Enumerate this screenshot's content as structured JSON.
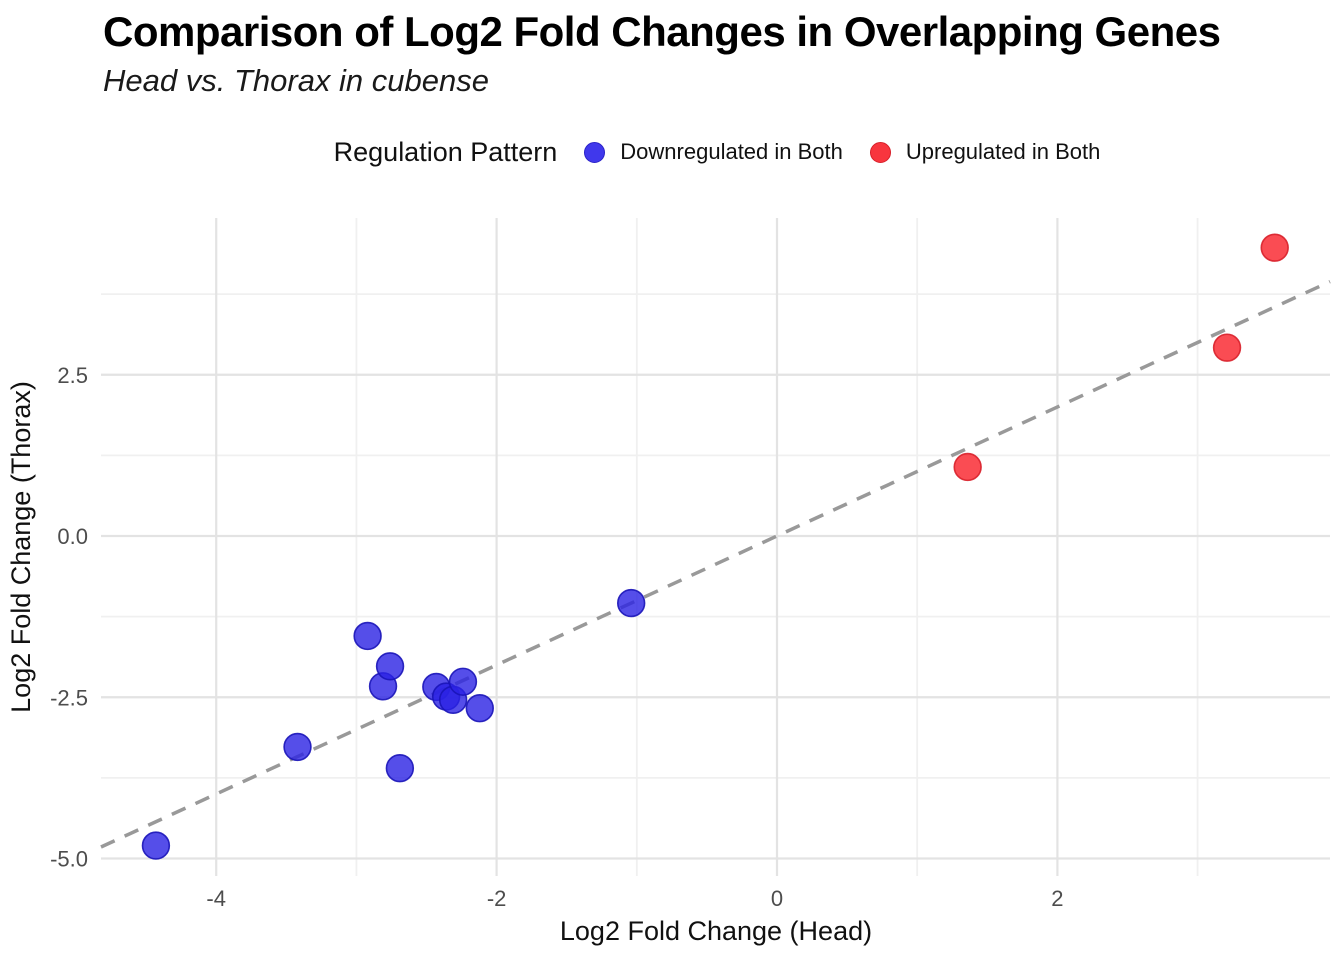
{
  "header": {
    "title": "Comparison of Log2 Fold Changes in Overlapping Genes",
    "subtitle": "Head vs. Thorax in cubense"
  },
  "legend": {
    "title": "Regulation Pattern",
    "items": [
      {
        "label": "Downregulated in Both",
        "color": "#4038EC",
        "border": "#2A22C8"
      },
      {
        "label": "Upregulated in Both",
        "color": "#F8353E",
        "border": "#D8202A"
      }
    ]
  },
  "chart_data": {
    "type": "scatter",
    "title": "Comparison of Log2 Fold Changes in Overlapping Genes",
    "subtitle": "Head vs. Thorax in cubense",
    "xlabel": "Log2 Fold Change (Head)",
    "ylabel": "Log2 Fold Change (Thorax)",
    "xlim": [
      -4.86,
      3.95
    ],
    "ylim": [
      -5.33,
      4.93
    ],
    "grid": true,
    "legend_position": "top",
    "x_major_ticks": [
      -4,
      -2,
      0,
      2
    ],
    "x_tick_labels": [
      "-4",
      "-2",
      "0",
      "2"
    ],
    "x_minor_ticks": [
      -3,
      -1,
      1,
      3
    ],
    "y_major_ticks": [
      2.5,
      0.0,
      -2.5,
      -5.0
    ],
    "y_tick_labels": [
      "2.5",
      "0.0",
      "-2.5",
      "-5.0"
    ],
    "y_minor_ticks": [
      3.75,
      1.25,
      -1.25,
      -3.75
    ],
    "reference_line": {
      "type": "identity",
      "slope": 1,
      "intercept": 0,
      "style": "dashed",
      "color": "#999999"
    },
    "series": [
      {
        "name": "Downregulated in Both",
        "color": "#2B22E4",
        "stroke": "#1A14B8",
        "fill_opacity": 0.8,
        "points": [
          [
            -4.43,
            -4.8
          ],
          [
            -3.42,
            -3.27
          ],
          [
            -2.92,
            -1.55
          ],
          [
            -2.81,
            -2.33
          ],
          [
            -2.76,
            -2.02
          ],
          [
            -2.69,
            -3.6
          ],
          [
            -2.43,
            -2.34
          ],
          [
            -2.36,
            -2.49
          ],
          [
            -2.31,
            -2.54
          ],
          [
            -2.24,
            -2.26
          ],
          [
            -2.12,
            -2.67
          ],
          [
            -1.04,
            -1.04
          ]
        ]
      },
      {
        "name": "Upregulated in Both",
        "color": "#F92D35",
        "stroke": "#D8202A",
        "fill_opacity": 0.85,
        "points": [
          [
            1.36,
            1.07
          ],
          [
            3.21,
            2.92
          ],
          [
            3.55,
            4.47
          ]
        ]
      }
    ]
  }
}
